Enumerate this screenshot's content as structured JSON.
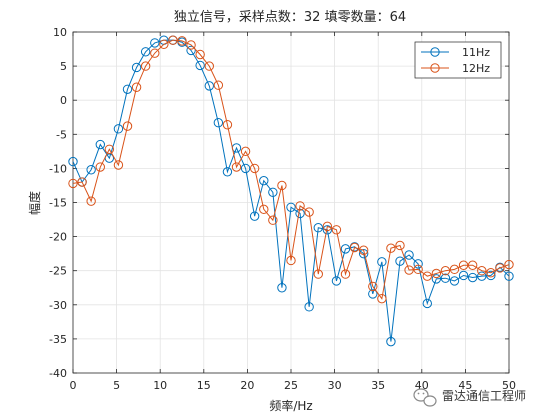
{
  "chart_data": {
    "type": "line",
    "title": "独立信号，采样点数：32 填零数量：64",
    "xlabel": "频率/Hz",
    "ylabel": "幅度",
    "xlim": [
      0,
      50
    ],
    "ylim": [
      -40,
      10
    ],
    "xticks": [
      0,
      5,
      10,
      15,
      20,
      25,
      30,
      35,
      40,
      45,
      50
    ],
    "yticks": [
      -40,
      -35,
      -30,
      -25,
      -20,
      -15,
      -10,
      -5,
      0,
      5,
      10
    ],
    "grid": true,
    "legend_position": "top-right",
    "series": [
      {
        "name": "11Hz",
        "color": "#0072BD",
        "marker": "circle",
        "x": [
          0,
          1.04,
          2.08,
          3.13,
          4.17,
          5.21,
          6.25,
          7.29,
          8.33,
          9.38,
          10.42,
          11.46,
          12.5,
          13.54,
          14.58,
          15.63,
          16.67,
          17.71,
          18.75,
          19.79,
          20.83,
          21.88,
          22.92,
          23.96,
          25,
          26.04,
          27.08,
          28.13,
          29.17,
          30.21,
          31.25,
          32.29,
          33.33,
          34.38,
          35.42,
          36.46,
          37.5,
          38.54,
          39.58,
          40.63,
          41.67,
          42.71,
          43.75,
          44.79,
          45.83,
          46.88,
          47.92,
          48.96,
          50
        ],
        "y": [
          -9,
          -12,
          -10.2,
          -6.5,
          -8.5,
          -4.2,
          1.6,
          4.8,
          7.1,
          8.4,
          8.8,
          8.8,
          8.5,
          7.3,
          5.1,
          2.1,
          -3.3,
          -10.5,
          -7,
          -10,
          -17,
          -11.8,
          -13.5,
          -27.5,
          -15.7,
          -16.6,
          -30.3,
          -18.7,
          -19,
          -26.5,
          -21.8,
          -21.5,
          -22.5,
          -28.4,
          -23.7,
          -35.4,
          -23.6,
          -22.7,
          -24,
          -29.8,
          -26.2,
          -26.1,
          -26.5,
          -25.7,
          -26,
          -25.8,
          -25.7,
          -24.5,
          -25.8
        ]
      },
      {
        "name": "12Hz",
        "color": "#D95319",
        "marker": "circle",
        "x": [
          0,
          1.04,
          2.08,
          3.13,
          4.17,
          5.21,
          6.25,
          7.29,
          8.33,
          9.38,
          10.42,
          11.46,
          12.5,
          13.54,
          14.58,
          15.63,
          16.67,
          17.71,
          18.75,
          19.79,
          20.83,
          21.88,
          22.92,
          23.96,
          25,
          26.04,
          27.08,
          28.13,
          29.17,
          30.21,
          31.25,
          32.29,
          33.33,
          34.38,
          35.42,
          36.46,
          37.5,
          38.54,
          39.58,
          40.63,
          41.67,
          42.71,
          43.75,
          44.79,
          45.83,
          46.88,
          47.92,
          48.96,
          50
        ],
        "y": [
          -12.2,
          -12,
          -14.8,
          -9.8,
          -7.2,
          -9.5,
          -3.8,
          1.9,
          5,
          6.9,
          8.2,
          8.8,
          8.7,
          8.1,
          6.7,
          5,
          2.2,
          -3.6,
          -9.8,
          -7.5,
          -10,
          -16,
          -17.6,
          -12.5,
          -23.5,
          -15.5,
          -16.4,
          -25.5,
          -18.5,
          -19,
          -25.5,
          -21.6,
          -22,
          -27.3,
          -29.1,
          -21.7,
          -21.3,
          -24.9,
          -24.8,
          -25.8,
          -25.4,
          -25,
          -24.8,
          -24.2,
          -24.2,
          -25,
          -25.3,
          -24.6,
          -24.1
        ]
      }
    ]
  },
  "watermark": {
    "icon": "wechat-icon",
    "text": "雷达通信工程师"
  }
}
